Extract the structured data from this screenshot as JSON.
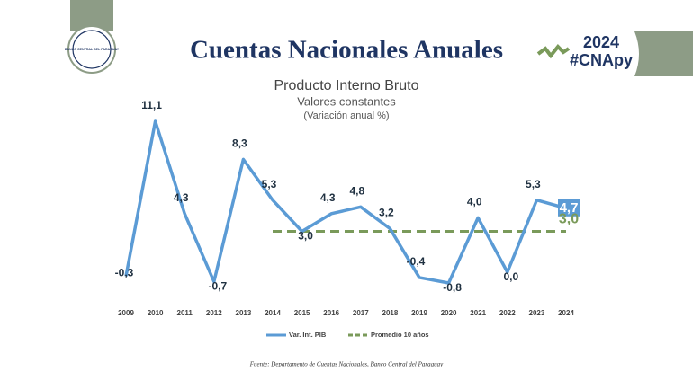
{
  "header": {
    "title": "Cuentas Nacionales Anuales",
    "year": "2024",
    "hashtag": "#CNApy",
    "logo": "BANCO CENTRAL DEL PARAGUAY"
  },
  "footer": {
    "source": "Fuente: Departamento de Cuentas Nacionales, Banco Central del Paraguay"
  },
  "chart_data": {
    "type": "line",
    "title": "Producto Interno Bruto",
    "subtitle": "Valores constantes",
    "note": "(Variación anual %)",
    "categories": [
      "2009",
      "2010",
      "2011",
      "2012",
      "2013",
      "2014",
      "2015",
      "2016",
      "2017",
      "2018",
      "2019",
      "2020",
      "2021",
      "2022",
      "2023",
      "2024"
    ],
    "series": [
      {
        "name": "Var. Int. PIB",
        "color": "#5b9bd5",
        "dash": false,
        "values": [
          -0.3,
          11.1,
          4.3,
          -0.7,
          8.3,
          5.3,
          3.0,
          4.3,
          4.8,
          3.2,
          -0.4,
          -0.8,
          4.0,
          0.0,
          5.3,
          4.7
        ],
        "value_labels": [
          "-0,3",
          "11,1",
          "4,3",
          "-0,7",
          "8,3",
          "5,3",
          "3,0",
          "4,3",
          "4,8",
          "3,2",
          "-0,4",
          "-0,8",
          "4,0",
          "0,0",
          "5,3",
          "4,7"
        ]
      },
      {
        "name": "Promedio 10 años",
        "color": "#7a9a5a",
        "dash": true,
        "values": [
          null,
          null,
          null,
          null,
          null,
          3.0,
          3.0,
          3.0,
          3.0,
          3.0,
          3.0,
          3.0,
          3.0,
          3.0,
          3.0,
          3.0
        ],
        "value_labels": [
          null,
          null,
          null,
          null,
          null,
          null,
          null,
          null,
          null,
          null,
          null,
          null,
          null,
          null,
          null,
          "3,0"
        ]
      }
    ]
  }
}
